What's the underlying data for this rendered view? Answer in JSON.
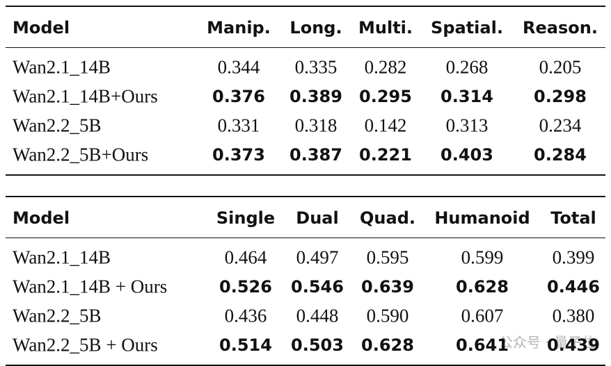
{
  "tables": [
    {
      "header": [
        "Model",
        "Manip.",
        "Long.",
        "Multi.",
        "Spatial.",
        "Reason."
      ],
      "rows": [
        {
          "cells": [
            "Wan2.1_14B",
            "0.344",
            "0.335",
            "0.282",
            "0.268",
            "0.205"
          ],
          "bold": false
        },
        {
          "cells": [
            "Wan2.1_14B+Ours",
            "0.376",
            "0.389",
            "0.295",
            "0.314",
            "0.298"
          ],
          "bold": true
        },
        {
          "cells": [
            "Wan2.2_5B",
            "0.331",
            "0.318",
            "0.142",
            "0.313",
            "0.234"
          ],
          "bold": false
        },
        {
          "cells": [
            "Wan2.2_5B+Ours",
            "0.373",
            "0.387",
            "0.221",
            "0.403",
            "0.284"
          ],
          "bold": true
        }
      ]
    },
    {
      "header": [
        "Model",
        "Single",
        "Dual",
        "Quad.",
        "Humanoid",
        "Total"
      ],
      "rows": [
        {
          "cells": [
            "Wan2.1_14B",
            "0.464",
            "0.497",
            "0.595",
            "0.599",
            "0.399"
          ],
          "bold": false
        },
        {
          "cells": [
            "Wan2.1_14B + Ours",
            "0.526",
            "0.546",
            "0.639",
            "0.628",
            "0.446"
          ],
          "bold": true
        },
        {
          "cells": [
            "Wan2.2_5B",
            "0.436",
            "0.448",
            "0.590",
            "0.607",
            "0.380"
          ],
          "bold": false
        },
        {
          "cells": [
            "Wan2.2_5B + Ours",
            "0.514",
            "0.503",
            "0.628",
            "0.641",
            "0.439"
          ],
          "bold": true
        }
      ]
    }
  ],
  "watermark": "公众号 · 量子位"
}
